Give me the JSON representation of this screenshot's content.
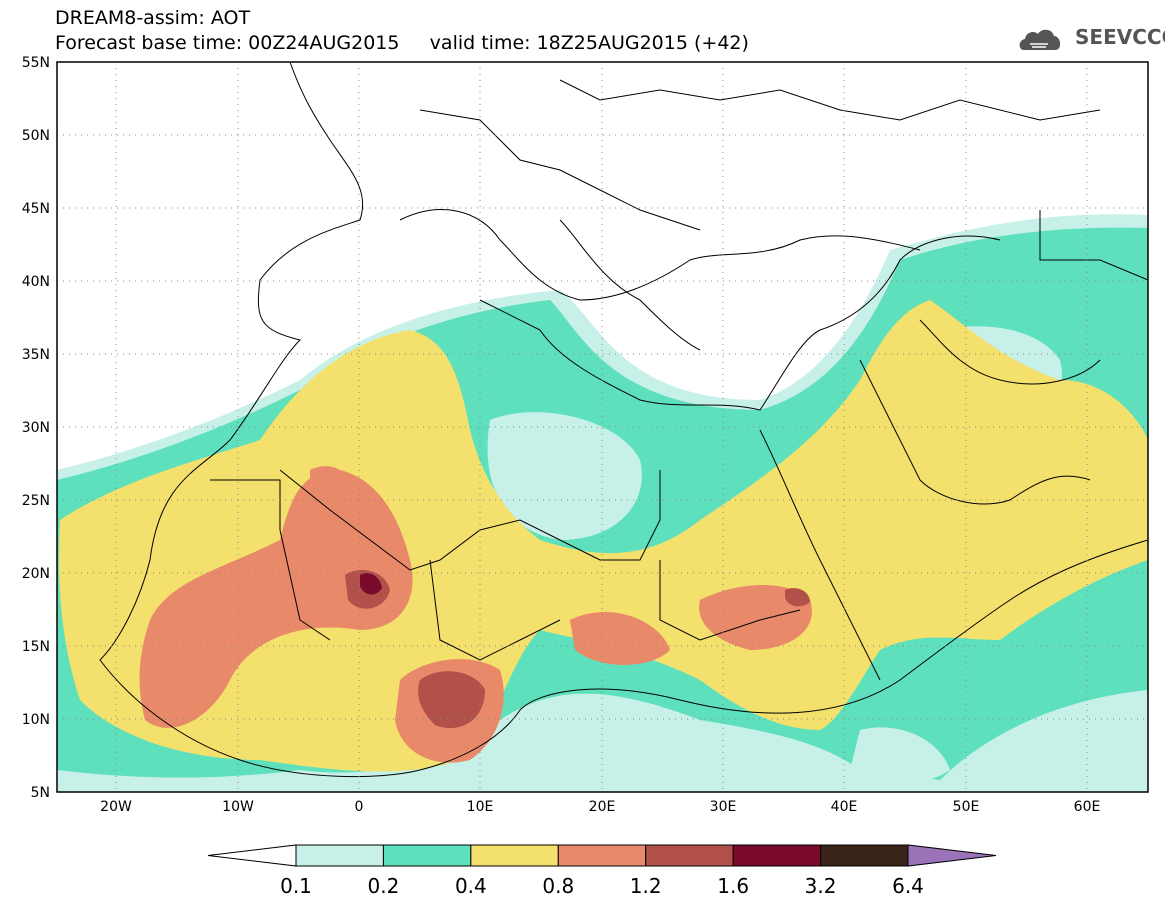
{
  "header": {
    "line1": "DREAM8-assim: AOT",
    "line2": "Forecast base time: 00Z24AUG2015     valid time: 18Z25AUG2015 (+42)"
  },
  "logo": {
    "text": "SEEVCCC",
    "icon": "cloud-logo-icon"
  },
  "map": {
    "lat_range": [
      5,
      55
    ],
    "lon_range": [
      -25,
      65
    ],
    "lat_labels": [
      "55N",
      "50N",
      "45N",
      "40N",
      "35N",
      "30N",
      "25N",
      "20N",
      "15N",
      "10N",
      "5N"
    ],
    "lon_labels": [
      "20W",
      "10W",
      "0",
      "10E",
      "20E",
      "30E",
      "40E",
      "50E",
      "60E"
    ]
  },
  "colorbar": {
    "labels": [
      "0.1",
      "0.2",
      "0.4",
      "0.8",
      "1.2",
      "1.6",
      "3.2",
      "6.4"
    ],
    "colors": [
      "#ffffff",
      "#c6f0e8",
      "#5ee0bc",
      "#f4e06c",
      "#e8896a",
      "#b2504a",
      "#7a0a2c",
      "#3a2418",
      "#9b73b8"
    ]
  }
}
